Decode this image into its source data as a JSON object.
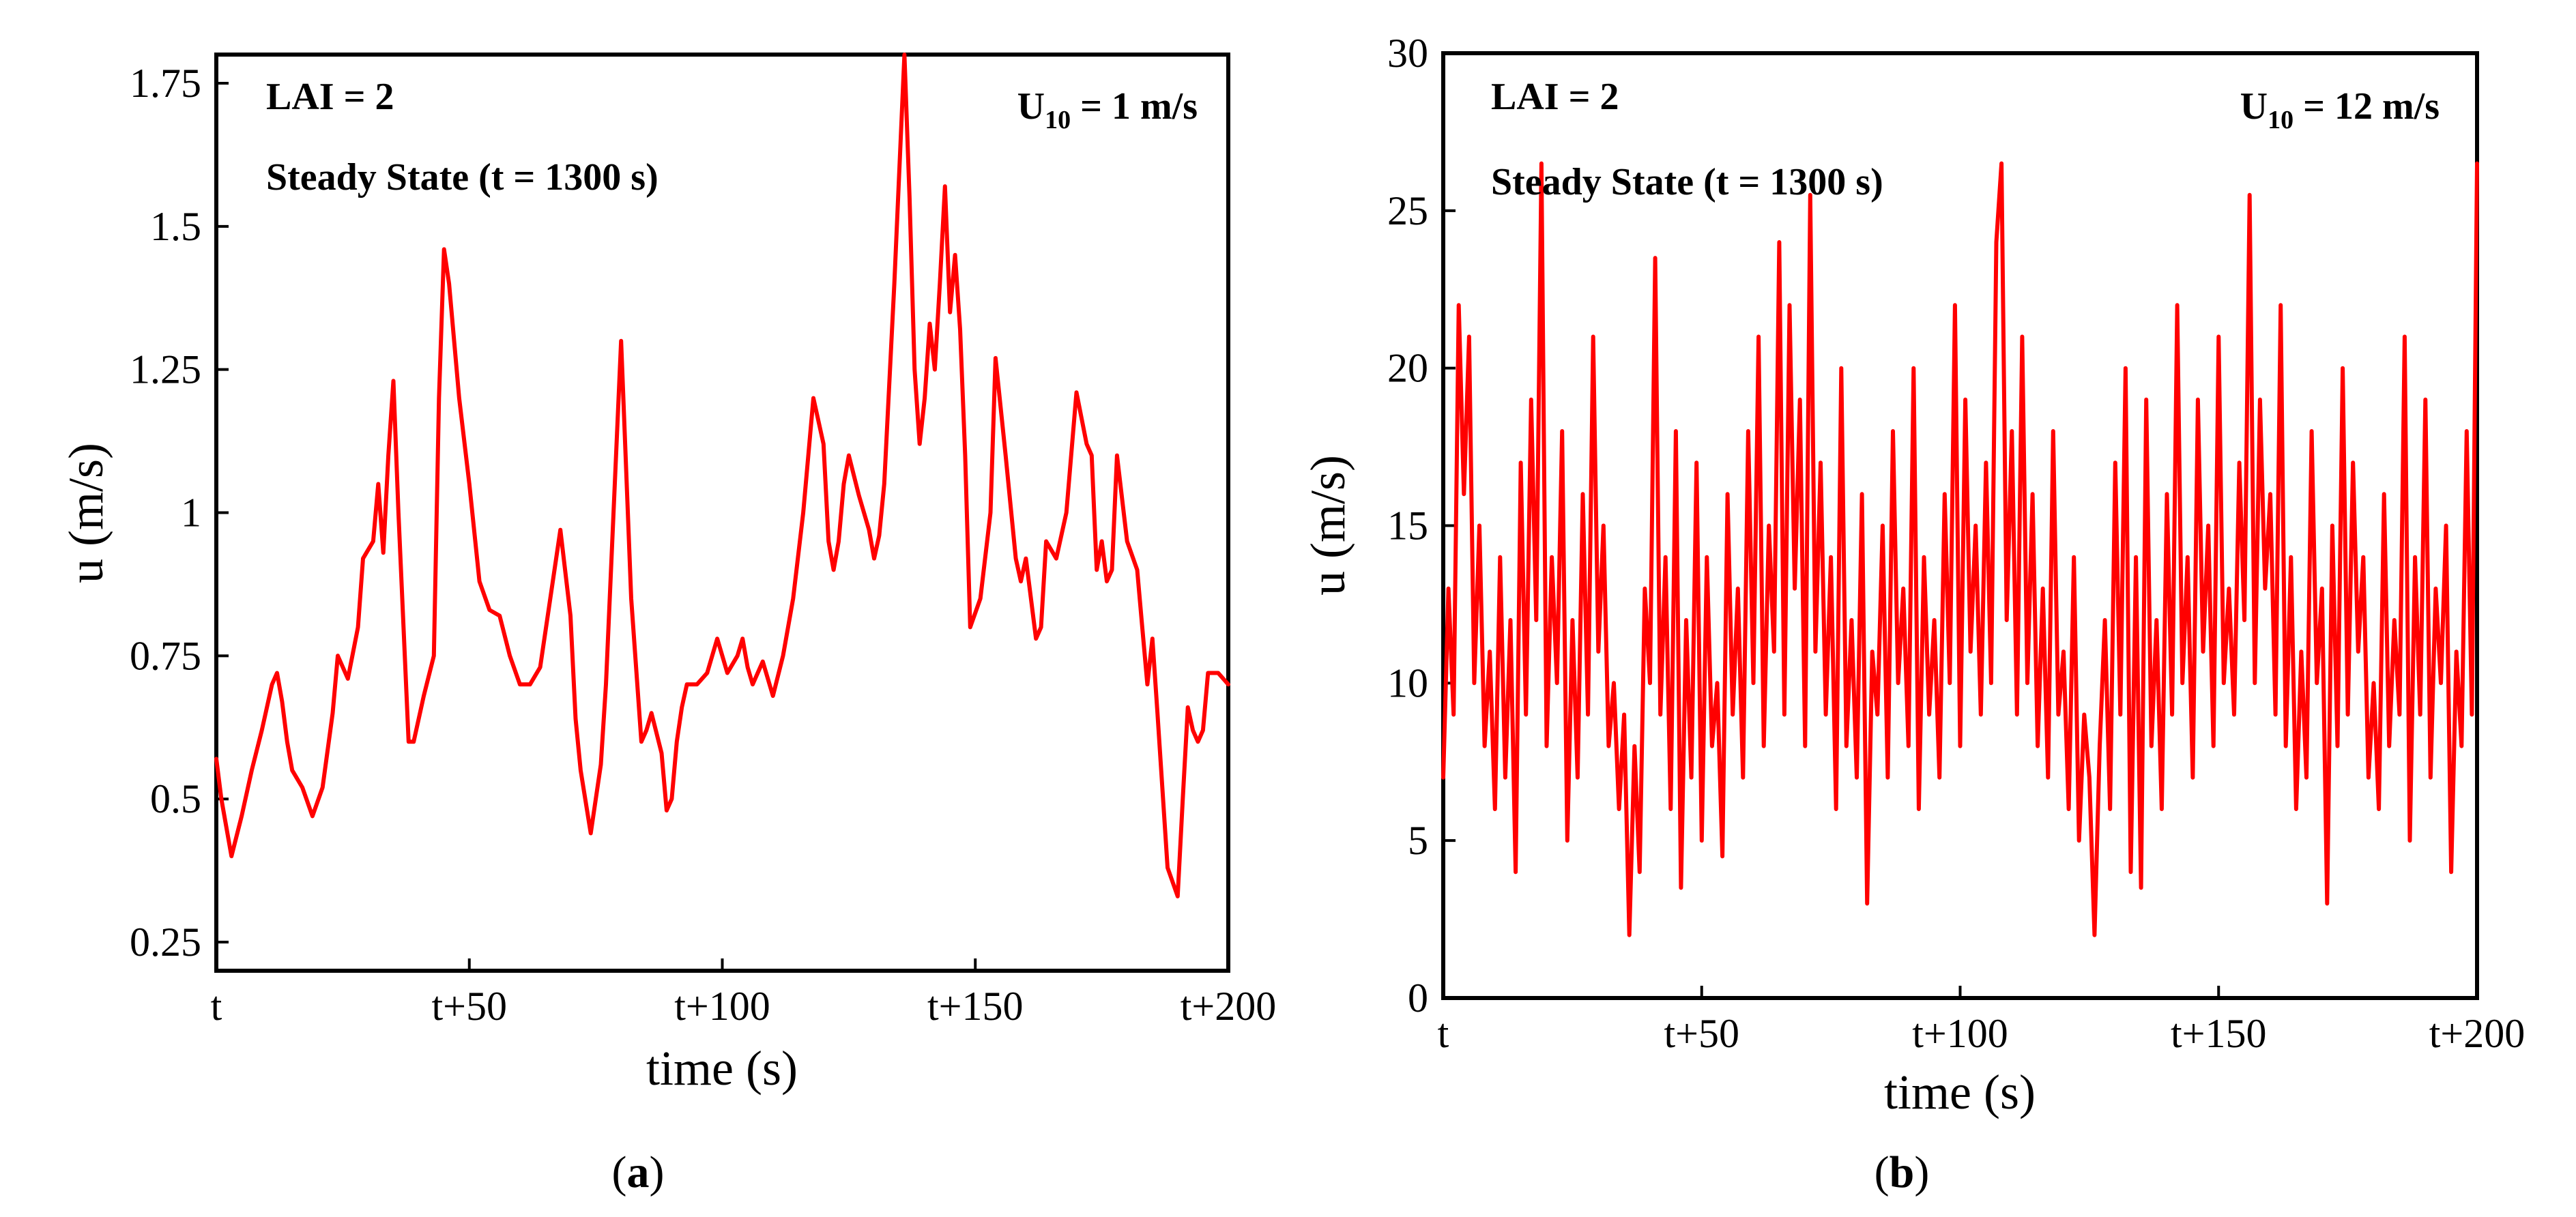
{
  "chart_data": [
    {
      "type": "line",
      "panel_label": "a",
      "xlabel": "time (s)",
      "ylabel": "u (m/s)",
      "xlim": [
        0,
        200
      ],
      "ylim": [
        0.2,
        1.8
      ],
      "xticks": [
        0,
        50,
        100,
        150,
        200
      ],
      "xtick_labels": [
        "t",
        "t+50",
        "t+100",
        "t+150",
        "t+200"
      ],
      "yticks": [
        0.25,
        0.5,
        0.75,
        1,
        1.25,
        1.5,
        1.75
      ],
      "ytick_labels": [
        "0.25",
        "0.5",
        "0.75",
        "1",
        "1.25",
        "1.5",
        "1.75"
      ],
      "annotations": {
        "lai": "LAI = 2",
        "state": "Steady State (t = 1300 s)",
        "wind_main": "U",
        "wind_sub": "10",
        "wind_value": " = 1 m/s"
      },
      "color": "#ff0000",
      "series": [
        {
          "name": "u",
          "x": [
            0,
            1,
            3,
            5,
            7,
            9,
            11,
            12,
            13,
            14,
            15,
            17,
            19,
            21,
            23,
            24,
            26,
            28,
            29,
            31,
            32,
            33,
            34,
            35,
            36,
            38,
            39,
            41,
            43,
            44,
            45,
            46,
            48,
            50,
            52,
            54,
            56,
            58,
            60,
            62,
            64,
            66,
            68,
            70,
            71,
            72,
            74,
            76,
            77,
            78,
            80,
            82,
            84,
            85,
            86,
            88,
            89,
            90,
            91,
            92,
            93,
            95,
            97,
            99,
            101,
            103,
            104,
            105,
            106,
            107,
            108,
            110,
            112,
            114,
            116,
            118,
            120,
            121,
            122,
            123,
            124,
            125,
            127,
            129,
            130,
            131,
            132,
            134,
            136,
            137,
            138,
            139,
            140,
            141,
            142,
            143,
            144,
            145,
            146,
            147,
            148,
            149,
            151,
            153,
            154,
            156,
            158,
            159,
            160,
            161,
            162,
            163,
            164,
            166,
            168,
            170,
            172,
            173,
            174,
            175,
            176,
            177,
            178,
            180,
            182,
            183,
            184,
            185,
            186,
            188,
            190,
            191,
            192,
            193,
            194,
            195,
            196,
            198,
            200
          ],
          "y": [
            0.57,
            0.5,
            0.4,
            0.47,
            0.55,
            0.62,
            0.7,
            0.72,
            0.67,
            0.6,
            0.55,
            0.52,
            0.47,
            0.52,
            0.65,
            0.75,
            0.71,
            0.8,
            0.92,
            0.95,
            1.05,
            0.93,
            1.1,
            1.23,
            1.0,
            0.6,
            0.6,
            0.68,
            0.75,
            1.2,
            1.46,
            1.4,
            1.2,
            1.05,
            0.88,
            0.83,
            0.82,
            0.75,
            0.7,
            0.7,
            0.73,
            0.85,
            0.97,
            0.82,
            0.64,
            0.55,
            0.44,
            0.56,
            0.7,
            0.9,
            1.3,
            0.85,
            0.6,
            0.62,
            0.65,
            0.58,
            0.48,
            0.5,
            0.6,
            0.66,
            0.7,
            0.7,
            0.72,
            0.78,
            0.72,
            0.75,
            0.78,
            0.73,
            0.7,
            0.72,
            0.74,
            0.68,
            0.75,
            0.85,
            1.0,
            1.2,
            1.12,
            0.95,
            0.9,
            0.95,
            1.05,
            1.1,
            1.03,
            0.97,
            0.92,
            0.96,
            1.05,
            1.4,
            1.8,
            1.55,
            1.25,
            1.12,
            1.2,
            1.33,
            1.25,
            1.4,
            1.57,
            1.35,
            1.45,
            1.32,
            1.1,
            0.8,
            0.85,
            1.0,
            1.27,
            1.1,
            0.92,
            0.88,
            0.92,
            0.85,
            0.78,
            0.8,
            0.95,
            0.92,
            1.0,
            1.21,
            1.12,
            1.1,
            0.9,
            0.95,
            0.88,
            0.9,
            1.1,
            0.95,
            0.9,
            0.8,
            0.7,
            0.78,
            0.65,
            0.38,
            0.33,
            0.5,
            0.66,
            0.62,
            0.6,
            0.62,
            0.72,
            0.72,
            0.7
          ]
        }
      ]
    },
    {
      "type": "line",
      "panel_label": "b",
      "xlabel": "time (s)",
      "ylabel": "u (m/s)",
      "xlim": [
        0,
        200
      ],
      "ylim": [
        0,
        30
      ],
      "xticks": [
        0,
        50,
        100,
        150,
        200
      ],
      "xtick_labels": [
        "t",
        "t+50",
        "t+100",
        "t+150",
        "t+200"
      ],
      "yticks": [
        0,
        5,
        10,
        15,
        20,
        25,
        30
      ],
      "ytick_labels": [
        "0",
        "5",
        "10",
        "15",
        "20",
        "25",
        "30"
      ],
      "annotations": {
        "lai": "LAI = 2",
        "state": "Steady State (t = 1300 s)",
        "wind_main": "U",
        "wind_sub": "10",
        "wind_value": " = 12 m/s"
      },
      "color": "#ff0000",
      "series": [
        {
          "name": "u",
          "x": [
            0,
            1,
            2,
            3,
            4,
            5,
            6,
            7,
            8,
            9,
            10,
            11,
            12,
            13,
            14,
            15,
            16,
            17,
            18,
            19,
            20,
            21,
            22,
            23,
            24,
            25,
            26,
            27,
            28,
            29,
            30,
            31,
            32,
            33,
            34,
            35,
            36,
            37,
            38,
            39,
            40,
            41,
            42,
            43,
            44,
            45,
            46,
            47,
            48,
            49,
            50,
            51,
            52,
            53,
            54,
            55,
            56,
            57,
            58,
            59,
            60,
            61,
            62,
            63,
            64,
            65,
            66,
            67,
            68,
            69,
            70,
            71,
            72,
            73,
            74,
            75,
            76,
            77,
            78,
            79,
            80,
            81,
            82,
            83,
            84,
            85,
            86,
            87,
            88,
            89,
            90,
            91,
            92,
            93,
            94,
            95,
            96,
            97,
            98,
            99,
            100,
            101,
            102,
            103,
            104,
            105,
            106,
            107,
            108,
            109,
            110,
            111,
            112,
            113,
            114,
            115,
            116,
            117,
            118,
            119,
            120,
            121,
            122,
            123,
            124,
            125,
            126,
            127,
            128,
            129,
            130,
            131,
            132,
            133,
            134,
            135,
            136,
            137,
            138,
            139,
            140,
            141,
            142,
            143,
            144,
            145,
            146,
            147,
            148,
            149,
            150,
            151,
            152,
            153,
            154,
            155,
            156,
            157,
            158,
            159,
            160,
            161,
            162,
            163,
            164,
            165,
            166,
            167,
            168,
            169,
            170,
            171,
            172,
            173,
            174,
            175,
            176,
            177,
            178,
            179,
            180,
            181,
            182,
            183,
            184,
            185,
            186,
            187,
            188,
            189,
            190,
            191,
            192,
            193,
            194,
            195,
            196,
            197,
            198,
            199,
            200
          ],
          "y": [
            7.0,
            13.0,
            9.0,
            22.0,
            16.0,
            21.0,
            10.0,
            15.0,
            8.0,
            11.0,
            6.0,
            14.0,
            7.0,
            12.0,
            4.0,
            17.0,
            9.0,
            19.0,
            12.0,
            26.5,
            8.0,
            14.0,
            10.0,
            18.0,
            5.0,
            12.0,
            7.0,
            16.0,
            9.0,
            21.0,
            11.0,
            15.0,
            8.0,
            10.0,
            6.0,
            9.0,
            2.0,
            8.0,
            4.0,
            13.0,
            10.0,
            23.5,
            9.0,
            14.0,
            6.0,
            18.0,
            3.5,
            12.0,
            7.0,
            17.0,
            5.0,
            14.0,
            8.0,
            10.0,
            4.5,
            16.0,
            9.0,
            13.0,
            7.0,
            18.0,
            10.0,
            21.0,
            8.0,
            15.0,
            11.0,
            24.0,
            9.0,
            22.0,
            13.0,
            19.0,
            8.0,
            25.5,
            11.0,
            17.0,
            9.0,
            14.0,
            6.0,
            20.0,
            8.0,
            12.0,
            7.0,
            16.0,
            3.0,
            11.0,
            9.0,
            15.0,
            7.0,
            18.0,
            10.0,
            13.0,
            8.0,
            20.0,
            6.0,
            14.0,
            9.0,
            12.0,
            7.0,
            16.0,
            10.0,
            22.0,
            8.0,
            19.0,
            11.0,
            15.0,
            9.0,
            17.0,
            10.0,
            24.0,
            26.5,
            12.0,
            18.0,
            9.0,
            21.0,
            10.0,
            16.0,
            8.0,
            13.0,
            7.0,
            18.0,
            9.0,
            11.0,
            6.0,
            14.0,
            5.0,
            9.0,
            7.0,
            2.0,
            8.0,
            12.0,
            6.0,
            17.0,
            9.0,
            20.0,
            4.0,
            14.0,
            3.5,
            19.0,
            8.0,
            12.0,
            6.0,
            16.0,
            9.0,
            22.0,
            10.0,
            14.0,
            7.0,
            19.0,
            11.0,
            15.0,
            8.0,
            21.0,
            10.0,
            13.0,
            9.0,
            17.0,
            12.0,
            25.5,
            10.0,
            19.0,
            13.0,
            16.0,
            9.0,
            22.0,
            8.0,
            14.0,
            6.0,
            11.0,
            7.0,
            18.0,
            10.0,
            13.0,
            3.0,
            15.0,
            8.0,
            20.0,
            9.0,
            17.0,
            11.0,
            14.0,
            7.0,
            10.0,
            6.0,
            16.0,
            8.0,
            12.0,
            9.0,
            21.0,
            5.0,
            14.0,
            9.0,
            19.0,
            7.0,
            13.0,
            10.0,
            15.0,
            4.0,
            11.0,
            8.0,
            18.0,
            9.0,
            26.5
          ]
        }
      ]
    }
  ]
}
